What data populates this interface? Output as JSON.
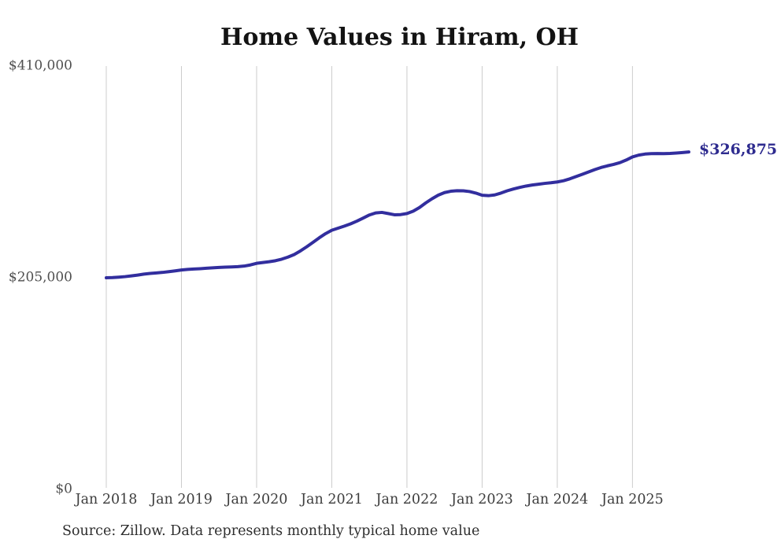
{
  "chart": {
    "title": "Home Values in Hiram, OH",
    "source_note": "Source: Zillow. Data represents monthly typical home value",
    "end_label": "$326,875",
    "colors": {
      "line": "#322e9e",
      "end_label": "#2e2b8f",
      "grid": "#cccccc",
      "y_tick_text": "#4f4f4f",
      "x_tick_text": "#3d3d3d",
      "title_text": "#131313",
      "background": "#ffffff"
    }
  },
  "chart_data": {
    "type": "line",
    "title": "Home Values in Hiram, OH",
    "x_unit": "month",
    "x_start_label": "Jan 2018",
    "x_end_label": "Oct 2025",
    "x_tick_labels": [
      "Jan 2018",
      "Jan 2019",
      "Jan 2020",
      "Jan 2021",
      "Jan 2022",
      "Jan 2023",
      "Jan 2024",
      "Jan 2025"
    ],
    "x_tick_month_offsets": [
      0,
      12,
      24,
      36,
      48,
      60,
      72,
      84
    ],
    "y_ticks": [
      0,
      205000,
      410000
    ],
    "y_tick_labels": [
      "$0",
      "$205,000",
      "$410,000"
    ],
    "ylim": [
      0,
      410000
    ],
    "grid": "vertical-only",
    "legend": "none",
    "end_label": "$326,875",
    "end_value": 326875,
    "series": [
      {
        "name": "Monthly typical home value",
        "start": "Jan 2018",
        "frequency": "monthly",
        "values": [
          205000,
          205200,
          205600,
          206100,
          206800,
          207600,
          208500,
          209200,
          209700,
          210200,
          210900,
          211700,
          212500,
          213100,
          213500,
          213800,
          214200,
          214600,
          215000,
          215300,
          215500,
          215800,
          216300,
          217400,
          219000,
          219800,
          220500,
          221500,
          223000,
          225000,
          227500,
          231000,
          235000,
          239300,
          243700,
          247700,
          251000,
          253000,
          255000,
          257200,
          259800,
          262800,
          265800,
          267800,
          268300,
          267200,
          266000,
          266200,
          267200,
          269500,
          273000,
          277500,
          281500,
          285000,
          287500,
          288800,
          289300,
          289200,
          288500,
          287000,
          284900,
          284500,
          285200,
          287000,
          289200,
          291000,
          292500,
          293800,
          294800,
          295600,
          296400,
          297000,
          297800,
          299000,
          300800,
          303000,
          305200,
          307500,
          309800,
          311800,
          313400,
          314800,
          316500,
          319000,
          322000,
          323800,
          324800,
          325200,
          325300,
          325200,
          325400,
          325800,
          326300,
          326875
        ]
      }
    ]
  }
}
